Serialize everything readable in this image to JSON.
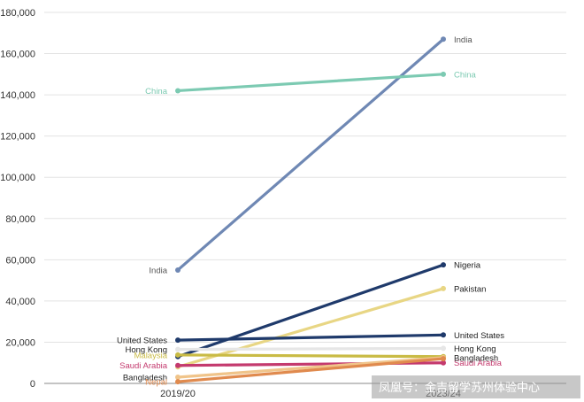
{
  "chart_data": {
    "type": "line",
    "categories": [
      "2019/20",
      "2023/24"
    ],
    "ylim": [
      0,
      180000
    ],
    "yticks": [
      0,
      20000,
      40000,
      60000,
      80000,
      100000,
      120000,
      140000,
      160000,
      180000
    ],
    "ytick_labels": [
      "0",
      "20,000",
      "40,000",
      "60,000",
      "80,000",
      "100,000",
      "120,000",
      "140,000",
      "160,000",
      "180,000"
    ],
    "grid": true,
    "series": [
      {
        "name": "India",
        "values": [
          55000,
          167000
        ],
        "color": "#6f88b4",
        "label_start": "India",
        "label_end": "India",
        "label_start_color": "#555555",
        "label_end_color": "#555555"
      },
      {
        "name": "China",
        "values": [
          142000,
          150000
        ],
        "color": "#7ccab2",
        "label_start": "China",
        "label_end": "China",
        "label_start_color": "#7ccab2",
        "label_end_color": "#7ccab2"
      },
      {
        "name": "Nigeria",
        "values": [
          13000,
          57500
        ],
        "color": "#1f3a6b",
        "label_start": "",
        "label_end": "Nigeria",
        "label_start_color": "#222222",
        "label_end_color": "#222222"
      },
      {
        "name": "Pakistan",
        "values": [
          8000,
          46000
        ],
        "color": "#e8d684",
        "label_start": "",
        "label_end": "Pakistan",
        "label_start_color": "#222222",
        "label_end_color": "#222222"
      },
      {
        "name": "United States",
        "values": [
          21000,
          23500
        ],
        "color": "#1f3a6b",
        "label_start": "United States",
        "label_end": "United States",
        "label_start_color": "#222222",
        "label_end_color": "#222222"
      },
      {
        "name": "Hong Kong",
        "values": [
          16500,
          17000
        ],
        "color": "#e6e6e6",
        "label_start": "Hong Kong",
        "label_end": "Hong Kong",
        "label_start_color": "#222222",
        "label_end_color": "#222222"
      },
      {
        "name": "Malaysia",
        "values": [
          13800,
          13000
        ],
        "color": "#c9bb45",
        "label_start": "Malaysia",
        "label_end": "",
        "label_start_color": "#c9bb45",
        "label_end_color": "#c9bb45"
      },
      {
        "name": "Saudi Arabia",
        "values": [
          8700,
          10000
        ],
        "color": "#c43a6e",
        "label_start": "Saudi Arabia",
        "label_end": "Saudi Arabia",
        "label_start_color": "#c43a6e",
        "label_end_color": "#c43a6e"
      },
      {
        "name": "Bangladesh",
        "values": [
          3000,
          12500
        ],
        "color": "#f0c48a",
        "label_start": "Bangladesh",
        "label_end": "Bangladesh",
        "label_start_color": "#222222",
        "label_end_color": "#222222"
      },
      {
        "name": "Nepal",
        "values": [
          800,
          12000
        ],
        "color": "#e08a4e",
        "label_start": "Nepal",
        "label_end": "",
        "label_start_color": "#e08a4e",
        "label_end_color": "#e08a4e"
      }
    ]
  },
  "watermark": "凤凰号：金吉留学苏州体验中心"
}
